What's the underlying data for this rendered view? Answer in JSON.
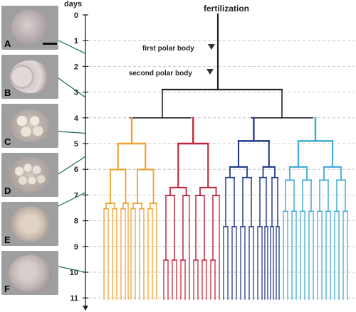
{
  "axis": {
    "label": "days",
    "ticks": [
      "0",
      "1",
      "2",
      "3",
      "4",
      "5",
      "6",
      "7",
      "8",
      "9",
      "10",
      "11"
    ]
  },
  "annotations": {
    "fertilization": "fertilization",
    "first_polar_body": "first polar body",
    "second_polar_body": "second polar body"
  },
  "panels": [
    {
      "letter": "A",
      "day": 1.5,
      "stage": "1-cell"
    },
    {
      "letter": "B",
      "day": 3.2,
      "stage": "2-cell"
    },
    {
      "letter": "C",
      "day": 4.6,
      "stage": "4-cell"
    },
    {
      "letter": "D",
      "day": 5.5,
      "stage": "8-cell"
    },
    {
      "letter": "E",
      "day": 6.9,
      "stage": "morula"
    },
    {
      "letter": "F",
      "day": 10.0,
      "stage": "morula"
    }
  ],
  "colors": {
    "lineage_1": "#f0a030",
    "lineage_2": "#c0283e",
    "lineage_3": "#253a8c",
    "lineage_4": "#40aad8",
    "trunk": "#222222",
    "connector": "#1f6b4a",
    "gridline": "#bbbbbb"
  }
}
